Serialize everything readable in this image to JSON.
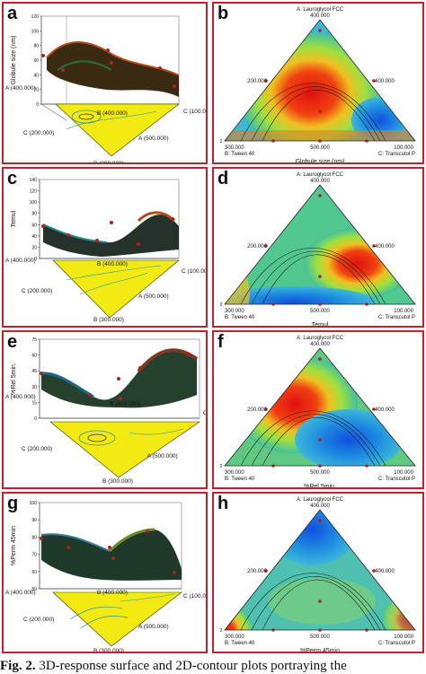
{
  "caption": {
    "fig": "Fig. 2.",
    "text": "3D-response surface and 2D-contour plots portraying the"
  },
  "panels": [
    {
      "letter": "a",
      "kind": "surface3d",
      "ylabel": "Globule size (nm)",
      "yticks": [
        "0",
        "20",
        "40",
        "60",
        "80",
        "100",
        "120"
      ],
      "factor_a": "A (400.000)",
      "factor_b": "B (400.000)",
      "factor_c": "C (100.000)",
      "tri_c": "C (200.000)",
      "tri_a": "A (500.000)",
      "tri_b": "B (300.000)"
    },
    {
      "letter": "b",
      "kind": "contour",
      "top": "A: Lauroglycol FCC",
      "top_val": "400.000",
      "left_val": "200.000",
      "right_val": "400.000",
      "bl_val": "300.000",
      "bl_name": "B: Tween 40",
      "bm_val": "500.000",
      "br_val": "100.000",
      "br_name": "C: Transcutol P",
      "xlabel": "Globule size (nm)",
      "corner": "2",
      "hot": "tr_a"
    },
    {
      "letter": "c",
      "kind": "surface3d",
      "ylabel": "Temul",
      "yticks": [
        "0",
        "20",
        "40",
        "60",
        "80",
        "100",
        "120",
        "140"
      ],
      "factor_a": "A (400.000)",
      "factor_b": "B (400.000)",
      "factor_c": "C (100.000)",
      "tri_c": "C (200.000)",
      "tri_a": "A (500.000)",
      "tri_b": "B (300.000)"
    },
    {
      "letter": "d",
      "kind": "contour",
      "top": "A: Lauroglycol FCC",
      "top_val": "400.000",
      "left_val": "200.000",
      "right_val": "400.000",
      "bl_val": "300.000",
      "bl_name": "B: Tween 40",
      "bm_val": "500.000",
      "br_val": "100.000",
      "br_name": "C: Transcutol P",
      "xlabel": "Temul",
      "corner": "2",
      "hot": "tr_d"
    },
    {
      "letter": "e",
      "kind": "surface3d",
      "ylabel": "%Rel 5min.",
      "yticks": [
        "0",
        "15",
        "30",
        "45",
        "60",
        "75"
      ],
      "factor_a": "A (400.000)",
      "factor_b": "B (400.000)",
      "factor_c": "C",
      "tri_c": "C (200.000)",
      "tri_a": "A (500.000)",
      "tri_b": "B (300.000)"
    },
    {
      "letter": "f",
      "kind": "contour",
      "top": "A: Lauroglycol FCC",
      "top_val": "400.000",
      "left_val": "200.000",
      "right_val": "400.000",
      "bl_val": "300.000",
      "bl_name": "B: Tween 40",
      "bm_val": "500.000",
      "br_val": "100.000",
      "br_name": "C: Transcutol P",
      "xlabel": "%Rel 5min.",
      "corner": "2",
      "hot": "tr_f"
    },
    {
      "letter": "g",
      "kind": "surface3d",
      "ylabel": "%Perm 45min",
      "yticks": [
        "50",
        "60",
        "70",
        "80",
        "90",
        "100"
      ],
      "factor_a": "A (400.000)",
      "factor_b": "B (400.000)",
      "factor_c": "C (100.000)",
      "tri_c": "C (200.000)",
      "tri_a": "A (500.000)",
      "tri_b": "B (300.000)"
    },
    {
      "letter": "h",
      "kind": "contour",
      "top": "A: Lauroglycol FCC",
      "top_val": "400.000",
      "left_val": "200.000",
      "right_val": "400.000",
      "bl_val": "300.000",
      "bl_name": "B: Tween 40",
      "bm_val": "500.000",
      "br_val": "100.000",
      "br_name": "C: Transcutol P",
      "xlabel": "%Perm 45min",
      "corner": "2",
      "hot": "tr_h"
    }
  ],
  "colors": {
    "frame": "#c8202a",
    "base": "#f2ea12"
  }
}
